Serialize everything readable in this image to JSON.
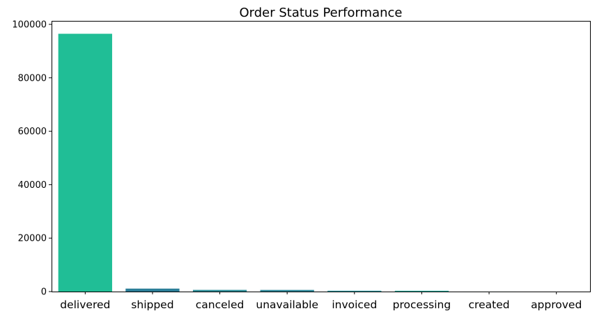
{
  "chart_data": {
    "type": "bar",
    "title": "Order Status Performance",
    "xlabel": "",
    "ylabel": "",
    "categories": [
      "delivered",
      "shipped",
      "canceled",
      "unavailable",
      "invoiced",
      "processing",
      "created",
      "approved"
    ],
    "values": [
      96478,
      1107,
      625,
      609,
      314,
      301,
      5,
      2
    ],
    "colors": [
      "#20be96",
      "#2b7e98",
      "#2e8f99",
      "#2d889a",
      "#2d98a0",
      "#27a99a",
      "#29b297",
      "#26ba96"
    ],
    "ylim": [
      0,
      101300
    ],
    "yticks": [
      0,
      20000,
      40000,
      60000,
      80000,
      100000
    ],
    "ytick_labels": [
      "0",
      "20000",
      "40000",
      "60000",
      "80000",
      "100000"
    ],
    "grid": false,
    "legend": "none"
  }
}
